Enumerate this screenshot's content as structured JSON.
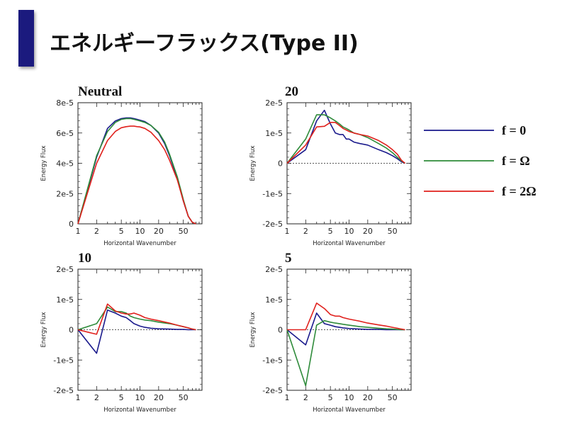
{
  "slide": {
    "title": "エネルギーフラックス(Type II)"
  },
  "legend": {
    "items": [
      {
        "label": "f = 0",
        "color": "#1a1a8c"
      },
      {
        "label": "f = Ω",
        "color": "#2e8b3a"
      },
      {
        "label": "f = 2Ω",
        "color": "#e0201c"
      }
    ]
  },
  "chart_data": [
    {
      "type": "line",
      "title": "Neutral",
      "xlabel": "Horizontal Wavenumber",
      "ylabel": "Energy Flux",
      "xscale": "log",
      "xlim": [
        1,
        100
      ],
      "ylim": [
        0,
        8e-05
      ],
      "xticks": [
        1,
        2,
        5,
        10,
        20,
        50
      ],
      "xticklabels": [
        "1",
        "2",
        "5",
        "10",
        "20",
        "50"
      ],
      "yticks": [
        0,
        2e-05,
        4e-05,
        6e-05,
        8e-05
      ],
      "yticklabels": [
        "0",
        "2e-5",
        "4e-5",
        "6e-5",
        "8e-5"
      ],
      "zero_line": false,
      "series": [
        {
          "name": "f = 0",
          "color": "#1a1a8c",
          "x": [
            1,
            2,
            3,
            4,
            5,
            6,
            7,
            8,
            9,
            10,
            12,
            15,
            20,
            25,
            30,
            40,
            50,
            60,
            70,
            80
          ],
          "y": [
            0,
            4.4e-05,
            6.3e-05,
            6.8e-05,
            6.95e-05,
            7e-05,
            7e-05,
            6.95e-05,
            6.9e-05,
            6.85e-05,
            6.75e-05,
            6.5e-05,
            6e-05,
            5.3e-05,
            4.5e-05,
            3e-05,
            1.5e-05,
            5e-06,
            1e-06,
            0
          ]
        },
        {
          "name": "f = Ω",
          "color": "#2e8b3a",
          "x": [
            1,
            2,
            3,
            4,
            5,
            6,
            7,
            8,
            9,
            10,
            12,
            15,
            20,
            25,
            30,
            40,
            50,
            60,
            70,
            80
          ],
          "y": [
            0,
            4.5e-05,
            6.1e-05,
            6.7e-05,
            6.9e-05,
            6.95e-05,
            6.95e-05,
            6.9e-05,
            6.85e-05,
            6.8e-05,
            6.7e-05,
            6.5e-05,
            6.05e-05,
            5.4e-05,
            4.6e-05,
            3.1e-05,
            1.6e-05,
            5e-06,
            1e-06,
            0
          ]
        },
        {
          "name": "f = 2Ω",
          "color": "#e0201c",
          "x": [
            1,
            2,
            3,
            4,
            5,
            6,
            7,
            8,
            9,
            10,
            12,
            15,
            20,
            25,
            30,
            40,
            50,
            60,
            70,
            80
          ],
          "y": [
            0,
            4e-05,
            5.5e-05,
            6.1e-05,
            6.35e-05,
            6.42e-05,
            6.45e-05,
            6.45e-05,
            6.42e-05,
            6.4e-05,
            6.3e-05,
            6.05e-05,
            5.5e-05,
            4.9e-05,
            4.2e-05,
            2.9e-05,
            1.5e-05,
            5e-06,
            1e-06,
            0
          ]
        }
      ]
    },
    {
      "type": "line",
      "title": "20",
      "xlabel": "Horizontal Wavenumber",
      "ylabel": "Energy Flux",
      "xscale": "log",
      "xlim": [
        1,
        100
      ],
      "ylim": [
        -2e-05,
        2e-05
      ],
      "xticks": [
        1,
        2,
        5,
        10,
        20,
        50
      ],
      "xticklabels": [
        "1",
        "2",
        "5",
        "10",
        "20",
        "50"
      ],
      "yticks": [
        -2e-05,
        -1e-05,
        0,
        1e-05,
        2e-05
      ],
      "yticklabels": [
        "-2e-5",
        "-1e-5",
        "0",
        "1e-5",
        "2e-5"
      ],
      "zero_line": true,
      "series": [
        {
          "name": "f = 0",
          "color": "#1a1a8c",
          "x": [
            1,
            2,
            3,
            4,
            5,
            6,
            7,
            8,
            9,
            10,
            12,
            15,
            20,
            30,
            40,
            50,
            60,
            70,
            80
          ],
          "y": [
            0,
            4.5e-06,
            1.4e-05,
            1.75e-05,
            1.3e-05,
            1e-05,
            9.5e-06,
            9.5e-06,
            8e-06,
            8e-06,
            7e-06,
            6.5e-06,
            6e-06,
            4.5e-06,
            3.5e-06,
            2.5e-06,
            1.5e-06,
            5e-07,
            0
          ]
        },
        {
          "name": "f = Ω",
          "color": "#2e8b3a",
          "x": [
            1,
            2,
            3,
            4,
            5,
            6,
            7,
            8,
            9,
            10,
            12,
            15,
            20,
            30,
            40,
            50,
            60,
            70,
            80
          ],
          "y": [
            0,
            8e-06,
            1.6e-05,
            1.6e-05,
            1.5e-05,
            1.4e-05,
            1.3e-05,
            1.2e-05,
            1.15e-05,
            1.1e-05,
            1e-05,
            9.5e-06,
            8.5e-06,
            6.5e-06,
            5e-06,
            3.5e-06,
            2e-06,
            8e-07,
            0
          ]
        },
        {
          "name": "f = 2Ω",
          "color": "#e0201c",
          "x": [
            1,
            2,
            3,
            4,
            5,
            6,
            7,
            8,
            9,
            10,
            12,
            15,
            20,
            30,
            40,
            50,
            60,
            70,
            80
          ],
          "y": [
            0,
            6e-06,
            1.2e-05,
            1.22e-05,
            1.35e-05,
            1.35e-05,
            1.25e-05,
            1.15e-05,
            1.1e-05,
            1.05e-05,
            1e-05,
            9.5e-06,
            9e-06,
            7.5e-06,
            6e-06,
            4.5e-06,
            3e-06,
            1e-06,
            0
          ]
        }
      ]
    },
    {
      "type": "line",
      "title": "10",
      "xlabel": "Horizontal Wavenumber",
      "ylabel": "Energy Flux",
      "xscale": "log",
      "xlim": [
        1,
        100
      ],
      "ylim": [
        -2e-05,
        2e-05
      ],
      "xticks": [
        1,
        2,
        5,
        10,
        20,
        50
      ],
      "xticklabels": [
        "1",
        "2",
        "5",
        "10",
        "20",
        "50"
      ],
      "yticks": [
        -2e-05,
        -1e-05,
        0,
        1e-05,
        2e-05
      ],
      "yticklabels": [
        "-2e-5",
        "-1e-5",
        "0",
        "1e-5",
        "2e-5"
      ],
      "zero_line": true,
      "series": [
        {
          "name": "f = 0",
          "color": "#1a1a8c",
          "x": [
            1,
            2,
            3,
            4,
            5,
            6,
            7,
            8,
            10,
            12,
            15,
            20,
            30,
            40,
            50,
            60,
            70,
            80
          ],
          "y": [
            0,
            -7.8e-06,
            6.5e-06,
            5.5e-06,
            4.5e-06,
            4e-06,
            3e-06,
            2e-06,
            1.2e-06,
            8e-07,
            5e-07,
            3e-07,
            2e-07,
            1e-07,
            1e-07,
            0,
            0,
            0
          ]
        },
        {
          "name": "f = Ω",
          "color": "#2e8b3a",
          "x": [
            1,
            2,
            3,
            4,
            5,
            6,
            7,
            8,
            10,
            12,
            15,
            20,
            30,
            40,
            50,
            60,
            70,
            80
          ],
          "y": [
            0,
            2e-06,
            7.5e-06,
            6e-06,
            6e-06,
            5.5e-06,
            4.5e-06,
            4e-06,
            3.5e-06,
            3.2e-06,
            3e-06,
            2.5e-06,
            2e-06,
            1.5e-06,
            1e-06,
            6e-07,
            2e-07,
            0
          ]
        },
        {
          "name": "f = 2Ω",
          "color": "#e0201c",
          "x": [
            1,
            2,
            3,
            4,
            5,
            6,
            7,
            8,
            10,
            12,
            15,
            20,
            30,
            40,
            50,
            60,
            70,
            80
          ],
          "y": [
            0,
            -1.5e-06,
            8.5e-06,
            6.2e-06,
            5.5e-06,
            5.2e-06,
            5.2e-06,
            5.5e-06,
            4.8e-06,
            4e-06,
            3.5e-06,
            3e-06,
            2.2e-06,
            1.5e-06,
            1e-06,
            6e-07,
            2e-07,
            0
          ]
        }
      ]
    },
    {
      "type": "line",
      "title": "5",
      "xlabel": "Horizontal Wavenumber",
      "ylabel": "Energy Flux",
      "xscale": "log",
      "xlim": [
        1,
        100
      ],
      "ylim": [
        -2e-05,
        2e-05
      ],
      "xticks": [
        1,
        2,
        5,
        10,
        20,
        50
      ],
      "xticklabels": [
        "1",
        "2",
        "5",
        "10",
        "20",
        "50"
      ],
      "yticks": [
        -2e-05,
        -1e-05,
        0,
        1e-05,
        2e-05
      ],
      "yticklabels": [
        "-2e-5",
        "-1e-5",
        "0",
        "1e-5",
        "2e-5"
      ],
      "zero_line": true,
      "series": [
        {
          "name": "f = 0",
          "color": "#1a1a8c",
          "x": [
            1,
            2,
            3,
            4,
            5,
            6,
            7,
            8,
            10,
            15,
            20,
            30,
            40,
            50,
            60,
            70,
            80
          ],
          "y": [
            0,
            -5e-06,
            5.5e-06,
            2e-06,
            1.5e-06,
            1e-06,
            8e-07,
            6e-07,
            4e-07,
            2e-07,
            1e-07,
            1e-07,
            0,
            0,
            0,
            0,
            0
          ]
        },
        {
          "name": "f = Ω",
          "color": "#2e8b3a",
          "x": [
            1,
            2,
            3,
            4,
            5,
            6,
            7,
            8,
            10,
            15,
            20,
            30,
            40,
            50,
            60,
            70,
            80
          ],
          "y": [
            0,
            -1.85e-05,
            1.5e-06,
            3e-06,
            2.5e-06,
            2.2e-06,
            2e-06,
            1.8e-06,
            1.5e-06,
            1e-06,
            8e-07,
            5e-07,
            3e-07,
            2e-07,
            1e-07,
            0,
            0
          ]
        },
        {
          "name": "f = 2Ω",
          "color": "#e0201c",
          "x": [
            1,
            2,
            3,
            4,
            5,
            6,
            7,
            8,
            10,
            15,
            20,
            30,
            40,
            50,
            60,
            70,
            80
          ],
          "y": [
            0,
            0,
            8.8e-06,
            7e-06,
            5e-06,
            4.5e-06,
            4.5e-06,
            4e-06,
            3.5e-06,
            2.8e-06,
            2.2e-06,
            1.6e-06,
            1.2e-06,
            8e-07,
            5e-07,
            2e-07,
            0
          ]
        }
      ]
    }
  ]
}
